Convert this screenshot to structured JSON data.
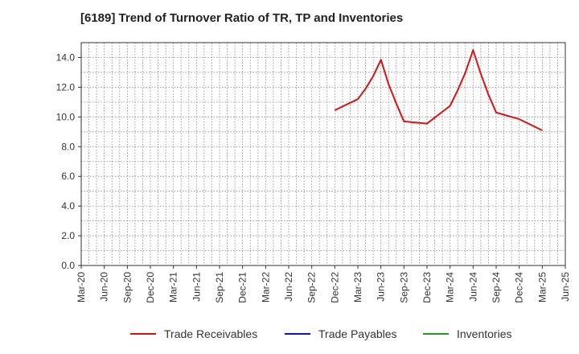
{
  "chart_data": {
    "type": "line",
    "title": "[6189]  Trend of Turnover Ratio of TR, TP and Inventories",
    "xlabel": "",
    "ylabel": "",
    "x_ticks": [
      "Mar-20",
      "Jun-20",
      "Sep-20",
      "Dec-20",
      "Mar-21",
      "Jun-21",
      "Sep-21",
      "Dec-21",
      "Mar-22",
      "Jun-22",
      "Sep-22",
      "Dec-22",
      "Mar-23",
      "Jun-23",
      "Sep-23",
      "Dec-23",
      "Mar-24",
      "Jun-24",
      "Sep-24",
      "Dec-24",
      "Mar-25",
      "Jun-25"
    ],
    "ylim": [
      0,
      15
    ],
    "y_ticks": [
      "0.0",
      "2.0",
      "4.0",
      "6.0",
      "8.0",
      "10.0",
      "12.0",
      "14.0"
    ],
    "grid": true,
    "legend_position": "bottom",
    "series": [
      {
        "name": "Trade Receivables",
        "color": "#dd1111",
        "points": [
          {
            "x": "Dec-22",
            "y": 10.45
          },
          {
            "x": "Mar-23",
            "y": 11.2
          },
          {
            "x": "Apr-23",
            "y": 11.9
          },
          {
            "x": "May-23",
            "y": 12.75
          },
          {
            "x": "Jun-23",
            "y": 13.85
          },
          {
            "x": "Jul-23",
            "y": 12.2
          },
          {
            "x": "Aug-23",
            "y": 10.9
          },
          {
            "x": "Sep-23",
            "y": 9.7
          },
          {
            "x": "Dec-23",
            "y": 9.55
          },
          {
            "x": "Mar-24",
            "y": 10.75
          },
          {
            "x": "Apr-24",
            "y": 11.8
          },
          {
            "x": "May-24",
            "y": 13.0
          },
          {
            "x": "Jun-24",
            "y": 14.5
          },
          {
            "x": "Jul-24",
            "y": 12.9
          },
          {
            "x": "Aug-24",
            "y": 11.5
          },
          {
            "x": "Sep-24",
            "y": 10.3
          },
          {
            "x": "Dec-24",
            "y": 9.85
          },
          {
            "x": "Mar-25",
            "y": 9.1
          }
        ]
      },
      {
        "name": "Trade Payables",
        "color": "#1111cc",
        "points": []
      },
      {
        "name": "Inventories",
        "color": "#229922",
        "points": []
      }
    ]
  }
}
